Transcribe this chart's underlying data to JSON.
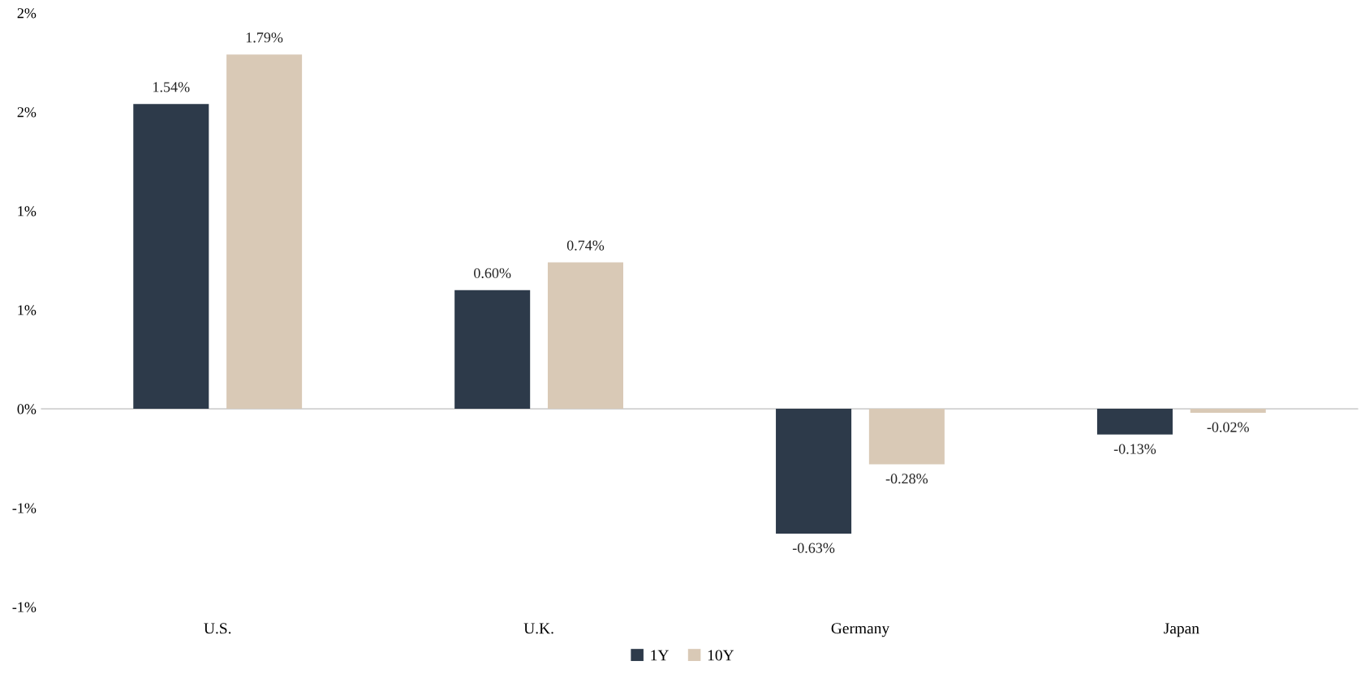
{
  "chart_data": {
    "type": "bar",
    "categories": [
      "U.S.",
      "U.K.",
      "Germany",
      "Japan"
    ],
    "series": [
      {
        "name": "1Y",
        "color": "#2d3a4a",
        "values": [
          1.54,
          0.6,
          -0.63,
          -0.13
        ]
      },
      {
        "name": "10Y",
        "color": "#d9c9b6",
        "values": [
          1.79,
          0.74,
          -0.28,
          -0.02
        ]
      }
    ],
    "ylim": [
      -1,
      2
    ],
    "yticks": [
      {
        "value": -1,
        "label": "-1%"
      },
      {
        "value": -0.5,
        "label": "-1%"
      },
      {
        "value": 0,
        "label": "0%"
      },
      {
        "value": 0.5,
        "label": "1%"
      },
      {
        "value": 1,
        "label": "1%"
      },
      {
        "value": 1.5,
        "label": "2%"
      },
      {
        "value": 2,
        "label": "2%"
      }
    ],
    "value_labels": [
      [
        "1.54%",
        "0.60%",
        "-0.63%",
        "-0.13%"
      ],
      [
        "1.79%",
        "0.74%",
        "-0.28%",
        "-0.02%"
      ]
    ],
    "ref_lines": [
      {
        "axis": "y",
        "value": 0,
        "color": "#d0d0d0"
      }
    ],
    "legend": "bottom"
  }
}
